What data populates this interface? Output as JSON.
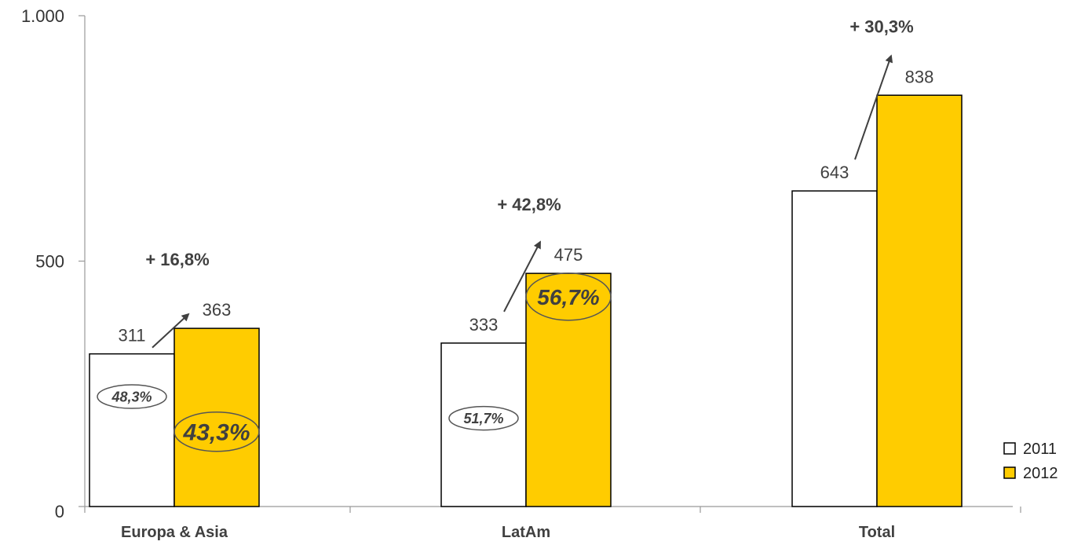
{
  "chart_data": {
    "type": "bar",
    "categories": [
      "Europa & Asia",
      "LatAm",
      "Total"
    ],
    "series": [
      {
        "name": "2011",
        "values": [
          311,
          333,
          643
        ],
        "color": "#ffffff"
      },
      {
        "name": "2012",
        "values": [
          363,
          475,
          838
        ],
        "color": "#ffcc00"
      }
    ],
    "ylim": [
      0,
      1000
    ],
    "yticks": [
      {
        "value": 0,
        "label": "0"
      },
      {
        "value": 500,
        "label": "500"
      },
      {
        "value": 1000,
        "label": "1.000"
      }
    ],
    "data_labels": [
      [
        "311",
        "333",
        "643"
      ],
      [
        "363",
        "475",
        "838"
      ]
    ],
    "growth": [
      "+ 16,8%",
      "+ 42,8%",
      "+ 30,3%"
    ],
    "shares": [
      {
        "series": 0,
        "category": 0,
        "label": "48,3%"
      },
      {
        "series": 1,
        "category": 0,
        "label": "43,3%"
      },
      {
        "series": 0,
        "category": 1,
        "label": "51,7%"
      },
      {
        "series": 1,
        "category": 1,
        "label": "56,7%"
      }
    ],
    "grid": false,
    "legend_position": "bottom-right"
  }
}
